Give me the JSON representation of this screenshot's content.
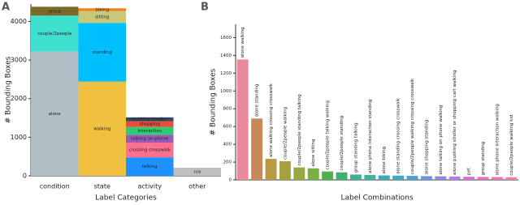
{
  "chart_data": [
    {
      "type": "stacked_bar",
      "label": "A",
      "ylabel": "# Bounding Boxes",
      "xlabel": "Label Categories",
      "categories": [
        "condition",
        "state",
        "activity",
        "other"
      ],
      "ylim": [
        0,
        4450
      ],
      "yticks": [
        0,
        1000,
        2000,
        3000,
        4000
      ],
      "series": [
        {
          "name": "alone",
          "color": "#b0bec5",
          "values": [
            3220,
            null,
            null,
            null
          ]
        },
        {
          "name": "couple/2people",
          "color": "#40e0d0",
          "values": [
            930,
            null,
            null,
            null
          ]
        },
        {
          "name": "group",
          "color": "#7b6a2a",
          "values": [
            230,
            null,
            null,
            null
          ]
        },
        {
          "name": "walking",
          "color": "#f0c040",
          "values": [
            null,
            2440,
            null,
            null
          ]
        },
        {
          "name": "standing",
          "color": "#00bfff",
          "values": [
            null,
            1520,
            null,
            null
          ]
        },
        {
          "name": "sitting",
          "color": "#c8c878",
          "values": [
            null,
            310,
            null,
            null
          ]
        },
        {
          "name": "biking",
          "color": "#f08020",
          "values": [
            null,
            70,
            null,
            null
          ]
        },
        {
          "name": "talking",
          "color": "#1e90ff",
          "values": [
            null,
            null,
            480,
            null
          ]
        },
        {
          "name": "crossing crosswalk",
          "color": "#ff6f91",
          "values": [
            null,
            null,
            380,
            null
          ]
        },
        {
          "name": "talking on phone",
          "color": "#9b59b6",
          "values": [
            null,
            null,
            205,
            null
          ]
        },
        {
          "name": "interaction",
          "color": "#2ecc71",
          "values": [
            null,
            null,
            200,
            null
          ]
        },
        {
          "name": "shopping",
          "color": "#e74c3c",
          "values": [
            null,
            null,
            150,
            null
          ]
        },
        {
          "name": "pushing stroller",
          "color": "#34495e",
          "values": [
            null,
            null,
            100,
            null
          ]
        },
        {
          "name": "n/a",
          "color": "#c0c0c0",
          "values": [
            null,
            null,
            null,
            210
          ]
        }
      ]
    },
    {
      "type": "bar",
      "label": "B",
      "ylabel": "# Bounding Boxes",
      "xlabel": "Label Combinations",
      "categories": [
        "alone walking",
        "alone standing",
        "alone walking crossing crosswalk",
        "couple/2people walking",
        "couple/2people standing talking",
        "alone sitting",
        "couple/2people talking walking",
        "couple/2people standing",
        "group standing talking",
        "alone phone interaction standing",
        "alone biking",
        "alone standing crossing crosswalk",
        "couple/2people walking crossing crosswalk",
        "alone shopping standing",
        "alone talking on phone walking",
        "alone pushing stroller or shopping cart walking",
        "pet",
        "group standing",
        "alone phone interaction walking",
        "couple/2people walking kid"
      ],
      "values": [
        1355,
        690,
        236,
        210,
        140,
        130,
        95,
        85,
        60,
        56,
        50,
        48,
        45,
        42,
        40,
        38,
        35,
        33,
        32,
        30
      ],
      "colors": [
        "#e88a9a",
        "#c9885a",
        "#b89a40",
        "#a8a040",
        "#98a840",
        "#7ab040",
        "#50b050",
        "#40b070",
        "#40b090",
        "#40b0a0",
        "#40a8b0",
        "#40a8c0",
        "#50a0d0",
        "#7090e0",
        "#9088e0",
        "#b080e0",
        "#d070d0",
        "#e070c0",
        "#e878b0",
        "#f080a0"
      ],
      "ylim": [
        0,
        1750
      ],
      "yticks": [
        0,
        200,
        400,
        600,
        800,
        1000,
        1200,
        1400,
        1600
      ]
    }
  ]
}
